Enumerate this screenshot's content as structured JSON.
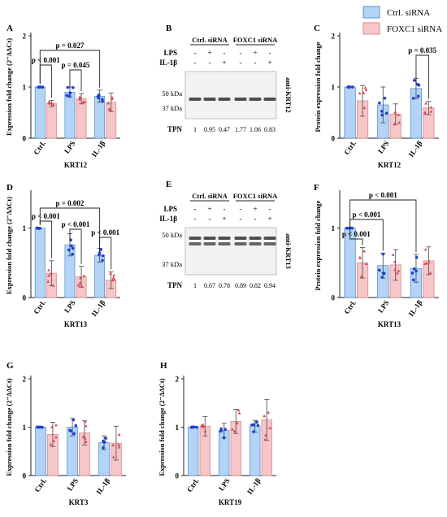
{
  "colors": {
    "ctrl": "#b3d4f5",
    "ctrl_stroke": "#5b8fd0",
    "foxc1": "#f6c6c9",
    "foxc1_stroke": "#d98a8f",
    "dot_ctrl": "#1f3fd0",
    "dot_foxc1": "#e04050",
    "err": "#555555"
  },
  "legend": {
    "ctrl_label": "Ctrl. siRNA",
    "foxc1_label": "FOXC1 siRNA"
  },
  "chart_data": [
    {
      "panel": "A",
      "type": "bar",
      "gene": "KRT12",
      "ylabel": "Expression fold change (2⁻ΔΔCt)",
      "ylim": [
        0,
        2
      ],
      "yticks": [
        "0",
        "1",
        "2"
      ],
      "categories": [
        "Ctrl.",
        "LPS",
        "IL-1β"
      ],
      "series": [
        {
          "name": "Ctrl. siRNA",
          "values": [
            1.0,
            0.9,
            0.82
          ],
          "err": [
            0.0,
            0.1,
            0.12
          ]
        },
        {
          "name": "FOXC1 siRNA",
          "values": [
            0.68,
            0.77,
            0.7
          ],
          "err": [
            0.06,
            0.1,
            0.18
          ]
        }
      ],
      "annotations": [
        {
          "text": "p = 0.027"
        },
        {
          "text": "p < 0.001"
        },
        {
          "text": "p = 0.045"
        }
      ]
    },
    {
      "panel": "C",
      "type": "bar",
      "gene": "KRT12",
      "ylabel": "Protein expression fold change",
      "ylim": [
        0,
        2
      ],
      "yticks": [
        "0",
        "1",
        "2"
      ],
      "categories": [
        "Ctrl.",
        "LPS",
        "IL-1β"
      ],
      "series": [
        {
          "name": "Ctrl. siRNA",
          "values": [
            1.0,
            0.65,
            0.97
          ],
          "err": [
            0.0,
            0.35,
            0.2
          ]
        },
        {
          "name": "FOXC1 siRNA",
          "values": [
            0.73,
            0.47,
            0.59
          ],
          "err": [
            0.3,
            0.2,
            0.13
          ]
        }
      ],
      "annotations": [
        {
          "text": "p = 0.035"
        }
      ]
    },
    {
      "panel": "D",
      "type": "bar",
      "gene": "KRT13",
      "ylabel": "Expression fold change (2⁻ΔΔCt)",
      "ylim": [
        0,
        1.5
      ],
      "yticks": [
        "0",
        "1"
      ],
      "categories": [
        "Ctrl.",
        "LPS",
        "IL-1β"
      ],
      "series": [
        {
          "name": "Ctrl. siRNA",
          "values": [
            1.0,
            0.76,
            0.61
          ],
          "err": [
            0.0,
            0.16,
            0.1
          ]
        },
        {
          "name": "FOXC1 siRNA",
          "values": [
            0.35,
            0.3,
            0.25
          ],
          "err": [
            0.18,
            0.15,
            0.12
          ]
        }
      ],
      "annotations": [
        {
          "text": "p = 0.002"
        },
        {
          "text": "p < 0.001"
        },
        {
          "text": "p < 0.001"
        },
        {
          "text": "p < 0.001"
        }
      ]
    },
    {
      "panel": "F",
      "type": "bar",
      "gene": "KRT13",
      "ylabel": "Protein expression fold change",
      "ylim": [
        0,
        1.5
      ],
      "yticks": [
        "0",
        "1"
      ],
      "categories": [
        "Ctrl.",
        "LPS",
        "IL-1β"
      ],
      "series": [
        {
          "name": "Ctrl. siRNA",
          "values": [
            1.0,
            0.46,
            0.42
          ],
          "err": [
            0.0,
            0.18,
            0.2
          ]
        },
        {
          "name": "FOXC1 siRNA",
          "values": [
            0.5,
            0.47,
            0.53
          ],
          "err": [
            0.22,
            0.22,
            0.2
          ]
        }
      ],
      "annotations": [
        {
          "text": "p < 0.001"
        },
        {
          "text": "p < 0.001"
        },
        {
          "text": "p < 0.001"
        }
      ]
    },
    {
      "panel": "G",
      "type": "bar",
      "gene": "KRT3",
      "ylabel": "Expression fold change (2⁻ΔΔCt)",
      "ylim": [
        0,
        2
      ],
      "yticks": [
        "0",
        "1",
        "2"
      ],
      "categories": [
        "Ctrl.",
        "LPS",
        "IL-1β"
      ],
      "series": [
        {
          "name": "Ctrl. siRNA",
          "values": [
            1.0,
            1.0,
            0.68
          ],
          "err": [
            0.0,
            0.18,
            0.14
          ]
        },
        {
          "name": "FOXC1 siRNA",
          "values": [
            0.85,
            0.88,
            0.67
          ],
          "err": [
            0.25,
            0.25,
            0.35
          ]
        }
      ]
    },
    {
      "panel": "H",
      "type": "bar",
      "gene": "KRT19",
      "ylabel": "Expression fold change (2⁻ΔΔCt)",
      "ylim": [
        0,
        2
      ],
      "yticks": [
        "0",
        "1",
        "2"
      ],
      "categories": [
        "Ctrl.",
        "LPS",
        "IL-1β"
      ],
      "series": [
        {
          "name": "Ctrl. siRNA",
          "values": [
            1.0,
            0.93,
            1.02
          ],
          "err": [
            0.0,
            0.15,
            0.12
          ]
        },
        {
          "name": "FOXC1 siRNA",
          "values": [
            1.02,
            1.12,
            1.15
          ],
          "err": [
            0.2,
            0.25,
            0.42
          ]
        }
      ]
    }
  ],
  "blots": [
    {
      "panel": "B",
      "antibody": "anti-KRT12",
      "ctrl_header": "Ctrl. siRNA",
      "foxc1_header": "FOXC1 siRNA",
      "lps_label": "LPS",
      "il_label": "IL-1β",
      "lps_signs": [
        "-",
        "+",
        "-",
        "-",
        "+",
        "-"
      ],
      "il_signs": [
        "-",
        "-",
        "+",
        "-",
        "-",
        "+"
      ],
      "marker_top": "50 kDa",
      "marker_bottom": "37 kDa",
      "tpn_label": "TPN",
      "tpn": [
        "1",
        "0.95",
        "0.47",
        "1.77",
        "1.06",
        "0.83"
      ]
    },
    {
      "panel": "E",
      "antibody": "anti-KRT13",
      "ctrl_header": "Ctrl. siRNA",
      "foxc1_header": "FOXC1 siRNA",
      "lps_label": "LPS",
      "il_label": "IL-1β",
      "lps_signs": [
        "-",
        "+",
        "-",
        "-",
        "+",
        "-"
      ],
      "il_signs": [
        "-",
        "-",
        "+",
        "-",
        "-",
        "+"
      ],
      "marker_top": "50 kDa",
      "marker_bottom": "37 kDa",
      "tpn_label": "TPN",
      "tpn": [
        "1",
        "0.67",
        "0.78",
        "0.89",
        "0.82",
        "0.94"
      ]
    }
  ]
}
